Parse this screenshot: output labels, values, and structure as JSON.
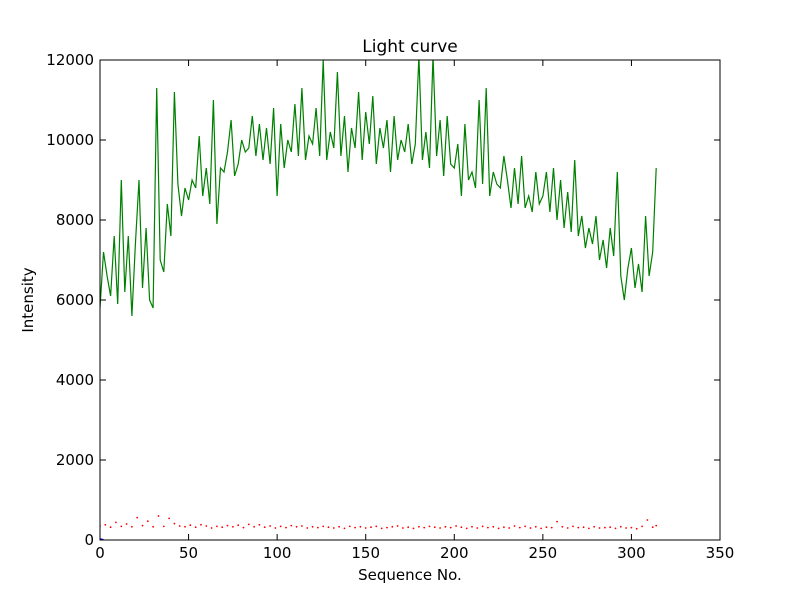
{
  "chart_data": {
    "type": "line",
    "title": "Light curve",
    "xlabel": "Sequence No.",
    "ylabel": "Intensity",
    "xlim": [
      0,
      350
    ],
    "ylim": [
      0,
      12000
    ],
    "xticks": [
      "0",
      "50",
      "100",
      "150",
      "200",
      "250",
      "300",
      "350"
    ],
    "yticks": [
      "0",
      "2000",
      "4000",
      "6000",
      "8000",
      "10000",
      "12000"
    ],
    "grid": false,
    "legend": "none",
    "series": [
      {
        "color": "#008000",
        "style": "line",
        "x": [
          0,
          2,
          4,
          6,
          8,
          10,
          12,
          14,
          16,
          18,
          20,
          22,
          24,
          26,
          28,
          30,
          32,
          34,
          36,
          38,
          40,
          42,
          44,
          46,
          48,
          50,
          52,
          54,
          56,
          58,
          60,
          62,
          64,
          66,
          68,
          70,
          72,
          74,
          76,
          78,
          80,
          82,
          84,
          86,
          88,
          90,
          92,
          94,
          96,
          98,
          100,
          102,
          104,
          106,
          108,
          110,
          112,
          114,
          116,
          118,
          120,
          122,
          124,
          126,
          128,
          130,
          132,
          134,
          136,
          138,
          140,
          142,
          144,
          146,
          148,
          150,
          152,
          154,
          156,
          158,
          160,
          162,
          164,
          166,
          168,
          170,
          172,
          174,
          176,
          178,
          180,
          182,
          184,
          186,
          188,
          190,
          192,
          194,
          196,
          198,
          200,
          202,
          204,
          206,
          208,
          210,
          212,
          214,
          216,
          218,
          220,
          222,
          224,
          226,
          228,
          230,
          232,
          234,
          236,
          238,
          240,
          242,
          244,
          246,
          248,
          250,
          252,
          254,
          256,
          258,
          260,
          262,
          264,
          266,
          268,
          270,
          272,
          274,
          276,
          278,
          280,
          282,
          284,
          286,
          288,
          290,
          292,
          294,
          296,
          298,
          300,
          302,
          304,
          306,
          308,
          310,
          312,
          314
        ],
        "y": [
          5800,
          7200,
          6600,
          6100,
          7600,
          5900,
          9000,
          6200,
          7600,
          5600,
          7400,
          9000,
          6300,
          7800,
          6000,
          5800,
          11300,
          7000,
          6700,
          8400,
          7600,
          11200,
          8900,
          8100,
          8800,
          8500,
          9000,
          8800,
          10100,
          8600,
          9300,
          8400,
          11000,
          7900,
          9300,
          9200,
          9700,
          10500,
          9100,
          9400,
          10000,
          9700,
          9800,
          10600,
          9600,
          10400,
          9500,
          10300,
          9400,
          10800,
          8600,
          10400,
          9300,
          10000,
          9700,
          10900,
          9600,
          11300,
          9500,
          10100,
          9900,
          10800,
          9600,
          12000,
          9500,
          10200,
          9800,
          11700,
          9600,
          10600,
          9200,
          10300,
          9800,
          11200,
          9500,
          10700,
          9900,
          11100,
          9400,
          10300,
          9800,
          10500,
          9200,
          10600,
          9500,
          10000,
          9700,
          10400,
          9400,
          9900,
          12100,
          9500,
          10200,
          9300,
          12100,
          9600,
          10500,
          9100,
          10600,
          9400,
          9300,
          9900,
          8600,
          10400,
          9000,
          9200,
          8800,
          11000,
          8900,
          11300,
          8600,
          9200,
          8900,
          8800,
          9600,
          9000,
          8300,
          9300,
          8400,
          9600,
          8300,
          8600,
          8200,
          9200,
          8400,
          8600,
          9200,
          8200,
          9300,
          8000,
          9000,
          7800,
          8700,
          7700,
          9500,
          7600,
          8100,
          7300,
          7800,
          7400,
          8100,
          7000,
          7500,
          6800,
          7800,
          7100,
          9200,
          6600,
          6000,
          6800,
          7300,
          6300,
          6900,
          6200,
          8100,
          6600,
          7200,
          9300
        ]
      },
      {
        "color": "#ff0000",
        "style": "dots",
        "x": [
          0,
          3,
          6,
          9,
          12,
          15,
          18,
          21,
          24,
          27,
          30,
          33,
          36,
          39,
          42,
          45,
          48,
          51,
          54,
          57,
          60,
          63,
          66,
          69,
          72,
          75,
          78,
          81,
          84,
          87,
          90,
          93,
          96,
          99,
          102,
          105,
          108,
          111,
          114,
          117,
          120,
          123,
          126,
          129,
          132,
          135,
          138,
          141,
          144,
          147,
          150,
          153,
          156,
          159,
          162,
          165,
          168,
          171,
          174,
          177,
          180,
          183,
          186,
          189,
          192,
          195,
          198,
          201,
          204,
          207,
          210,
          213,
          216,
          219,
          222,
          225,
          228,
          231,
          234,
          237,
          240,
          243,
          246,
          249,
          252,
          255,
          258,
          261,
          264,
          267,
          270,
          273,
          276,
          279,
          282,
          285,
          288,
          291,
          294,
          297,
          300,
          303,
          306,
          309,
          312,
          314
        ],
        "y": [
          350,
          380,
          320,
          440,
          340,
          400,
          330,
          560,
          360,
          470,
          330,
          600,
          340,
          540,
          410,
          350,
          330,
          370,
          320,
          380,
          350,
          300,
          340,
          320,
          360,
          330,
          370,
          310,
          390,
          330,
          380,
          320,
          350,
          300,
          340,
          310,
          360,
          330,
          350,
          300,
          330,
          310,
          340,
          320,
          300,
          330,
          290,
          340,
          310,
          330,
          300,
          320,
          340,
          290,
          310,
          330,
          350,
          300,
          320,
          290,
          330,
          310,
          340,
          320,
          300,
          330,
          310,
          350,
          320,
          290,
          330,
          300,
          340,
          310,
          330,
          290,
          320,
          300,
          350,
          310,
          340,
          300,
          330,
          290,
          320,
          310,
          460,
          330,
          300,
          340,
          310,
          320,
          290,
          330,
          300,
          310,
          320,
          290,
          330,
          300,
          310,
          280,
          340,
          500,
          320,
          360
        ]
      },
      {
        "color": "#0000ff",
        "style": "line",
        "x": [
          0,
          2
        ],
        "y": [
          30,
          10
        ]
      }
    ]
  }
}
